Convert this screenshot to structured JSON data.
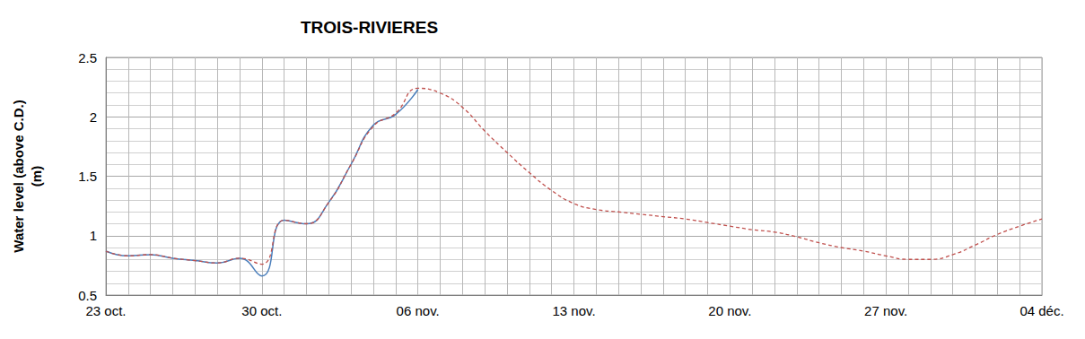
{
  "chart_data": {
    "type": "line",
    "title": "TROIS-RIVIERES",
    "y_label": "Water level (above C.D.)\n(m)",
    "x": [
      "23 oct.",
      null,
      null,
      null,
      null,
      null,
      null,
      "30 oct.",
      null,
      null,
      null,
      null,
      null,
      null,
      "06 nov.",
      null,
      null,
      null,
      null,
      null,
      null,
      "13 nov.",
      null,
      null,
      null,
      null,
      null,
      null,
      "20 nov.",
      null,
      null,
      null,
      null,
      null,
      null,
      "27 nov.",
      null,
      null,
      null,
      null,
      null,
      null,
      "04 déc."
    ],
    "series": [
      {
        "color": "#4a7ebb",
        "line_style": "solid",
        "values": [
          0.87,
          0.83,
          0.84,
          0.81,
          0.79,
          0.77,
          0.81,
          0.66,
          1.13,
          1.1,
          1.28,
          1.6,
          1.93,
          2.02,
          2.23,
          null,
          null,
          null,
          null,
          null,
          null,
          null,
          null,
          null,
          null,
          null,
          null,
          null,
          null,
          null,
          null,
          null,
          null,
          null,
          null,
          null,
          null,
          null,
          null,
          null,
          null,
          null,
          null
        ]
      },
      {
        "color": "#c0504d",
        "line_style": "dashed",
        "values": [
          0.87,
          0.83,
          0.84,
          0.81,
          0.79,
          0.77,
          0.81,
          0.76,
          1.13,
          1.1,
          1.28,
          1.6,
          1.92,
          2.03,
          2.24,
          2.2,
          2.08,
          1.88,
          1.7,
          1.53,
          1.38,
          1.27,
          1.22,
          1.2,
          1.18,
          1.16,
          1.14,
          1.11,
          1.08,
          1.05,
          1.03,
          0.99,
          0.94,
          0.9,
          0.87,
          0.83,
          0.8,
          0.8,
          0.84,
          0.92,
          1.01,
          1.08,
          1.14
        ]
      }
    ],
    "ylim": [
      0.5,
      2.5
    ],
    "yticks": [
      0.5,
      1,
      1.5,
      2,
      2.5
    ],
    "grid": true
  }
}
